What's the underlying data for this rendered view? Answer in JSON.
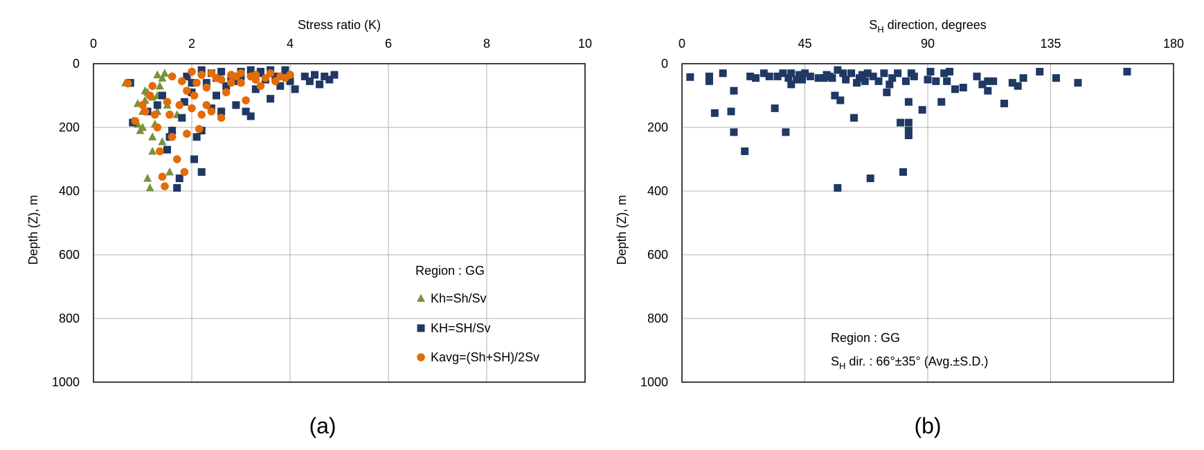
{
  "chart_data": [
    {
      "panel_label": "(a)",
      "type": "scatter",
      "xlabel": "Stress ratio (K)",
      "ylabel": "Depth (Z), m",
      "xlim": [
        0,
        10
      ],
      "ylim": [
        0,
        1000
      ],
      "y_inverted": true,
      "x_axis_position": "top",
      "xticks": [
        "0",
        "2",
        "4",
        "6",
        "8",
        "10"
      ],
      "yticks": [
        "0",
        "200",
        "400",
        "600",
        "800",
        "1000"
      ],
      "grid": true,
      "legend_placement": "bottom-right",
      "legend_title": "Region : GG",
      "series": [
        {
          "name": "Kh=Sh/Sv",
          "marker": "triangle",
          "color": "#77933C",
          "points": [
            [
              0.65,
              60
            ],
            [
              0.75,
              62
            ],
            [
              0.8,
              180
            ],
            [
              0.9,
              125
            ],
            [
              0.95,
              210
            ],
            [
              1.0,
              150
            ],
            [
              1.05,
              115
            ],
            [
              1.1,
              90
            ],
            [
              1.1,
              360
            ],
            [
              1.15,
              390
            ],
            [
              1.2,
              275
            ],
            [
              1.2,
              230
            ],
            [
              1.25,
              190
            ],
            [
              1.3,
              150
            ],
            [
              1.3,
              100
            ],
            [
              1.35,
              70
            ],
            [
              1.4,
              45
            ],
            [
              1.4,
              245
            ],
            [
              1.55,
              340
            ],
            [
              1.6,
              210
            ],
            [
              1.7,
              160
            ],
            [
              1.0,
              200
            ],
            [
              0.9,
              190
            ],
            [
              1.2,
              105
            ],
            [
              1.3,
              35
            ],
            [
              1.45,
              30
            ],
            [
              1.5,
              130
            ],
            [
              1.05,
              85
            ]
          ]
        },
        {
          "name": "KH=SH/Sv",
          "marker": "square",
          "color": "#1F3864",
          "points": [
            [
              0.75,
              60
            ],
            [
              0.8,
              185
            ],
            [
              1.1,
              150
            ],
            [
              1.3,
              130
            ],
            [
              1.4,
              100
            ],
            [
              1.5,
              270
            ],
            [
              1.55,
              230
            ],
            [
              1.6,
              210
            ],
            [
              1.7,
              390
            ],
            [
              1.75,
              360
            ],
            [
              1.8,
              170
            ],
            [
              1.85,
              120
            ],
            [
              2.0,
              90
            ],
            [
              2.05,
              300
            ],
            [
              2.1,
              230
            ],
            [
              2.2,
              340
            ],
            [
              2.2,
              210
            ],
            [
              2.3,
              60
            ],
            [
              2.4,
              140
            ],
            [
              2.5,
              100
            ],
            [
              2.6,
              150
            ],
            [
              2.7,
              70
            ],
            [
              2.8,
              50
            ],
            [
              2.9,
              130
            ],
            [
              3.0,
              40
            ],
            [
              3.1,
              150
            ],
            [
              3.2,
              165
            ],
            [
              3.3,
              80
            ],
            [
              3.4,
              30
            ],
            [
              3.5,
              50
            ],
            [
              3.6,
              110
            ],
            [
              3.7,
              40
            ],
            [
              3.8,
              70
            ],
            [
              3.9,
              30
            ],
            [
              4.0,
              55
            ],
            [
              4.1,
              80
            ],
            [
              4.3,
              40
            ],
            [
              4.4,
              55
            ],
            [
              4.5,
              35
            ],
            [
              4.6,
              65
            ],
            [
              4.7,
              40
            ],
            [
              4.8,
              50
            ],
            [
              4.9,
              35
            ],
            [
              2.2,
              20
            ],
            [
              2.4,
              30
            ],
            [
              2.6,
              25
            ],
            [
              3.0,
              25
            ],
            [
              3.2,
              20
            ],
            [
              3.4,
              25
            ],
            [
              3.6,
              20
            ],
            [
              3.9,
              20
            ],
            [
              2.0,
              60
            ],
            [
              1.9,
              40
            ],
            [
              2.5,
              45
            ],
            [
              2.9,
              55
            ]
          ]
        },
        {
          "name": "Kavg=(Sh+SH)/2Sv",
          "marker": "circle",
          "color": "#E36C09",
          "points": [
            [
              0.7,
              62
            ],
            [
              0.85,
              180
            ],
            [
              1.0,
              130
            ],
            [
              1.05,
              150
            ],
            [
              1.15,
              100
            ],
            [
              1.2,
              70
            ],
            [
              1.3,
              200
            ],
            [
              1.35,
              275
            ],
            [
              1.4,
              355
            ],
            [
              1.45,
              385
            ],
            [
              1.55,
              160
            ],
            [
              1.6,
              230
            ],
            [
              1.7,
              300
            ],
            [
              1.75,
              130
            ],
            [
              1.85,
              340
            ],
            [
              1.9,
              220
            ],
            [
              2.0,
              140
            ],
            [
              2.05,
              100
            ],
            [
              2.1,
              60
            ],
            [
              2.2,
              160
            ],
            [
              2.3,
              130
            ],
            [
              2.4,
              150
            ],
            [
              2.5,
              45
            ],
            [
              2.6,
              170
            ],
            [
              2.7,
              90
            ],
            [
              2.8,
              60
            ],
            [
              2.9,
              40
            ],
            [
              3.0,
              60
            ],
            [
              3.1,
              115
            ],
            [
              3.2,
              40
            ],
            [
              3.3,
              50
            ],
            [
              3.4,
              70
            ],
            [
              3.5,
              45
            ],
            [
              3.6,
              30
            ],
            [
              3.7,
              55
            ],
            [
              3.8,
              40
            ],
            [
              3.9,
              45
            ],
            [
              4.0,
              35
            ],
            [
              1.6,
              40
            ],
            [
              1.8,
              55
            ],
            [
              2.0,
              25
            ],
            [
              2.2,
              35
            ],
            [
              2.4,
              30
            ],
            [
              2.6,
              50
            ],
            [
              2.8,
              35
            ],
            [
              3.0,
              30
            ],
            [
              3.3,
              35
            ],
            [
              1.9,
              85
            ],
            [
              2.3,
              75
            ],
            [
              1.5,
              120
            ],
            [
              1.25,
              160
            ],
            [
              2.15,
              205
            ]
          ]
        }
      ]
    },
    {
      "panel_label": "(b)",
      "type": "scatter",
      "xlabel": "S",
      "xlabel_sub": "H",
      "xlabel_rest": " direction, degrees",
      "ylabel": "Depth (Z), m",
      "xlim": [
        0,
        180
      ],
      "ylim": [
        0,
        1000
      ],
      "y_inverted": true,
      "x_axis_position": "top",
      "xticks": [
        "0",
        "45",
        "90",
        "135",
        "180"
      ],
      "yticks": [
        "0",
        "200",
        "400",
        "600",
        "800",
        "1000"
      ],
      "grid": true,
      "annotation": {
        "line1": "Region : GG",
        "line2_prefix": "S",
        "line2_sub": "H",
        "line2_rest": " dir.  : 66°±35° (Avg.±S.D.)"
      },
      "series": [
        {
          "name": "",
          "marker": "square",
          "color": "#1F3864",
          "points": [
            [
              3,
              42
            ],
            [
              10,
              55
            ],
            [
              10,
              40
            ],
            [
              12,
              155
            ],
            [
              15,
              30
            ],
            [
              18,
              150
            ],
            [
              19,
              85
            ],
            [
              19,
              215
            ],
            [
              23,
              275
            ],
            [
              25,
              40
            ],
            [
              27,
              45
            ],
            [
              30,
              30
            ],
            [
              32,
              40
            ],
            [
              34,
              140
            ],
            [
              35,
              40
            ],
            [
              37,
              30
            ],
            [
              38,
              215
            ],
            [
              39,
              45
            ],
            [
              40,
              30
            ],
            [
              40,
              65
            ],
            [
              42,
              50
            ],
            [
              43,
              35
            ],
            [
              44,
              50
            ],
            [
              45,
              30
            ],
            [
              47,
              40
            ],
            [
              50,
              45
            ],
            [
              52,
              45
            ],
            [
              53,
              35
            ],
            [
              54,
              40
            ],
            [
              55,
              45
            ],
            [
              56,
              100
            ],
            [
              57,
              390
            ],
            [
              57,
              20
            ],
            [
              58,
              115
            ],
            [
              59,
              30
            ],
            [
              60,
              50
            ],
            [
              62,
              30
            ],
            [
              63,
              170
            ],
            [
              64,
              60
            ],
            [
              65,
              45
            ],
            [
              66,
              35
            ],
            [
              67,
              55
            ],
            [
              68,
              30
            ],
            [
              69,
              360
            ],
            [
              70,
              40
            ],
            [
              72,
              55
            ],
            [
              74,
              30
            ],
            [
              75,
              90
            ],
            [
              76,
              65
            ],
            [
              77,
              45
            ],
            [
              79,
              30
            ],
            [
              80,
              185
            ],
            [
              81,
              340
            ],
            [
              82,
              55
            ],
            [
              83,
              120
            ],
            [
              83,
              185
            ],
            [
              83,
              210
            ],
            [
              83,
              225
            ],
            [
              84,
              30
            ],
            [
              85,
              40
            ],
            [
              88,
              145
            ],
            [
              90,
              50
            ],
            [
              91,
              25
            ],
            [
              93,
              55
            ],
            [
              95,
              120
            ],
            [
              96,
              30
            ],
            [
              97,
              55
            ],
            [
              98,
              25
            ],
            [
              100,
              80
            ],
            [
              103,
              75
            ],
            [
              108,
              40
            ],
            [
              110,
              65
            ],
            [
              112,
              55
            ],
            [
              112,
              85
            ],
            [
              114,
              55
            ],
            [
              118,
              125
            ],
            [
              121,
              60
            ],
            [
              123,
              70
            ],
            [
              125,
              45
            ],
            [
              131,
              25
            ],
            [
              137,
              45
            ],
            [
              145,
              60
            ],
            [
              163,
              25
            ]
          ]
        }
      ]
    }
  ]
}
